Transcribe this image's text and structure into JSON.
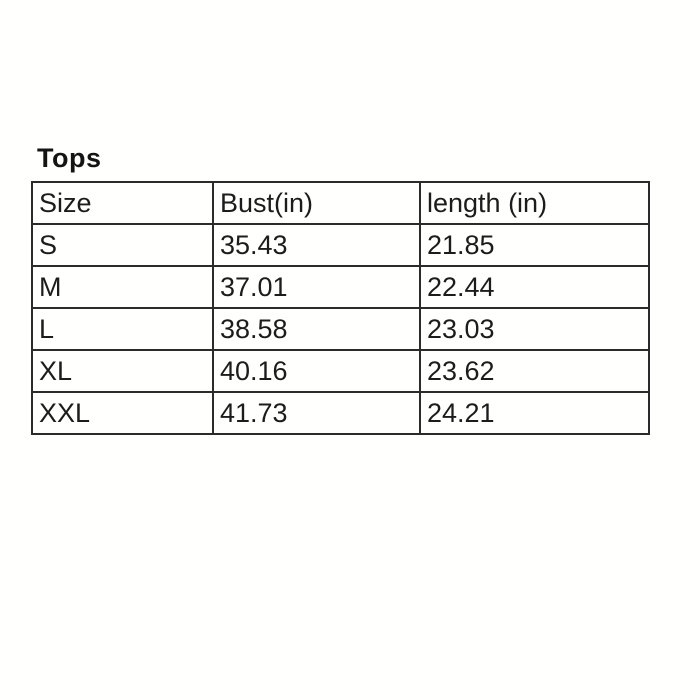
{
  "page": {
    "title": "Tops",
    "background_color": "#fffffd",
    "border_color": "#2b2b2b",
    "text_color": "#1c1c1c"
  },
  "table": {
    "headers": [
      "Size",
      "Bust(in)",
      "length (in)"
    ],
    "rows": [
      [
        "S",
        "35.43",
        "21.85"
      ],
      [
        "M",
        "37.01",
        "22.44"
      ],
      [
        "L",
        "38.58",
        "23.03"
      ],
      [
        "XL",
        "40.16",
        "23.62"
      ],
      [
        "XXL",
        "41.73",
        "24.21"
      ]
    ]
  },
  "chart_data": {
    "type": "table",
    "title": "Tops",
    "columns": [
      "Size",
      "Bust(in)",
      "length (in)"
    ],
    "rows": [
      [
        "S",
        35.43,
        21.85
      ],
      [
        "M",
        37.01,
        22.44
      ],
      [
        "L",
        38.58,
        23.03
      ],
      [
        "XL",
        40.16,
        23.62
      ],
      [
        "XXL",
        41.73,
        24.21
      ]
    ]
  }
}
